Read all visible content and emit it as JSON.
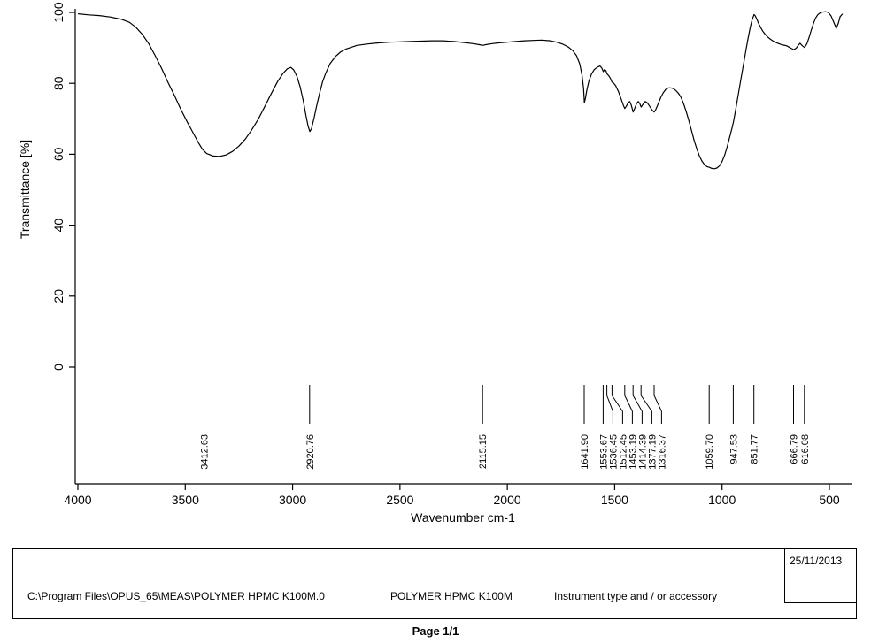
{
  "chart_data": {
    "type": "line",
    "title": "",
    "xlabel": "Wavenumber cm-1",
    "ylabel": "Transmittance [%]",
    "x_ticks": [
      4000,
      3500,
      3000,
      2500,
      2000,
      1500,
      1000,
      500
    ],
    "y_ticks": [
      0,
      20,
      40,
      60,
      80,
      100
    ],
    "xlim": [
      4000,
      450
    ],
    "ylim": [
      0,
      100
    ],
    "x_axis_reversed": true,
    "grid": false,
    "line_color": "#000000",
    "background": "#ffffff",
    "series": [
      {
        "name": "POLYMER HPMC K100M",
        "points": [
          [
            3998,
            99.6
          ],
          [
            3950,
            99.3
          ],
          [
            3900,
            99.1
          ],
          [
            3850,
            98.7
          ],
          [
            3800,
            98.1
          ],
          [
            3760,
            97.2
          ],
          [
            3730,
            95.8
          ],
          [
            3700,
            93.8
          ],
          [
            3670,
            91.2
          ],
          [
            3640,
            87.8
          ],
          [
            3610,
            84.2
          ],
          [
            3580,
            80.2
          ],
          [
            3550,
            76.5
          ],
          [
            3520,
            72.6
          ],
          [
            3490,
            69.0
          ],
          [
            3465,
            66.2
          ],
          [
            3440,
            63.4
          ],
          [
            3420,
            61.4
          ],
          [
            3400,
            60.2
          ],
          [
            3370,
            59.5
          ],
          [
            3340,
            59.4
          ],
          [
            3310,
            59.8
          ],
          [
            3280,
            60.8
          ],
          [
            3250,
            62.3
          ],
          [
            3220,
            64.3
          ],
          [
            3190,
            66.9
          ],
          [
            3160,
            69.9
          ],
          [
            3130,
            73.4
          ],
          [
            3100,
            77.0
          ],
          [
            3070,
            80.5
          ],
          [
            3045,
            82.8
          ],
          [
            3025,
            84.1
          ],
          [
            3008,
            84.5
          ],
          [
            2995,
            83.8
          ],
          [
            2980,
            82.0
          ],
          [
            2965,
            79.0
          ],
          [
            2950,
            75.0
          ],
          [
            2938,
            71.0
          ],
          [
            2928,
            68.0
          ],
          [
            2920,
            66.4
          ],
          [
            2912,
            67.2
          ],
          [
            2900,
            70.2
          ],
          [
            2888,
            73.6
          ],
          [
            2875,
            77.0
          ],
          [
            2860,
            80.5
          ],
          [
            2845,
            83.0
          ],
          [
            2825,
            85.6
          ],
          [
            2800,
            87.6
          ],
          [
            2775,
            88.9
          ],
          [
            2750,
            89.7
          ],
          [
            2700,
            90.7
          ],
          [
            2650,
            91.1
          ],
          [
            2600,
            91.4
          ],
          [
            2550,
            91.6
          ],
          [
            2500,
            91.7
          ],
          [
            2450,
            91.8
          ],
          [
            2400,
            91.9
          ],
          [
            2350,
            92.0
          ],
          [
            2300,
            92.0
          ],
          [
            2250,
            91.8
          ],
          [
            2200,
            91.5
          ],
          [
            2160,
            91.2
          ],
          [
            2130,
            90.9
          ],
          [
            2115,
            90.7
          ],
          [
            2100,
            90.9
          ],
          [
            2070,
            91.2
          ],
          [
            2040,
            91.4
          ],
          [
            2000,
            91.6
          ],
          [
            1960,
            91.8
          ],
          [
            1920,
            92.0
          ],
          [
            1880,
            92.1
          ],
          [
            1840,
            92.2
          ],
          [
            1800,
            92.0
          ],
          [
            1770,
            91.6
          ],
          [
            1740,
            91.0
          ],
          [
            1715,
            90.2
          ],
          [
            1695,
            89.2
          ],
          [
            1678,
            87.8
          ],
          [
            1663,
            85.5
          ],
          [
            1652,
            82.2
          ],
          [
            1645,
            78.5
          ],
          [
            1641,
            74.5
          ],
          [
            1636,
            75.8
          ],
          [
            1629,
            78.2
          ],
          [
            1620,
            80.6
          ],
          [
            1608,
            82.6
          ],
          [
            1595,
            83.9
          ],
          [
            1580,
            84.6
          ],
          [
            1568,
            84.9
          ],
          [
            1560,
            84.3
          ],
          [
            1553,
            83.3
          ],
          [
            1547,
            83.9
          ],
          [
            1541,
            83.6
          ],
          [
            1536,
            82.7
          ],
          [
            1528,
            82.2
          ],
          [
            1520,
            81.4
          ],
          [
            1512,
            80.3
          ],
          [
            1505,
            80.1
          ],
          [
            1495,
            79.3
          ],
          [
            1482,
            77.6
          ],
          [
            1470,
            75.6
          ],
          [
            1460,
            73.9
          ],
          [
            1453,
            72.9
          ],
          [
            1446,
            73.5
          ],
          [
            1438,
            74.5
          ],
          [
            1430,
            74.9
          ],
          [
            1423,
            73.9
          ],
          [
            1414,
            71.9
          ],
          [
            1407,
            72.9
          ],
          [
            1398,
            74.3
          ],
          [
            1390,
            74.9
          ],
          [
            1383,
            74.3
          ],
          [
            1377,
            73.3
          ],
          [
            1368,
            74.1
          ],
          [
            1358,
            74.9
          ],
          [
            1348,
            74.5
          ],
          [
            1337,
            73.5
          ],
          [
            1326,
            72.5
          ],
          [
            1316,
            71.9
          ],
          [
            1308,
            72.7
          ],
          [
            1298,
            74.1
          ],
          [
            1286,
            75.9
          ],
          [
            1274,
            77.3
          ],
          [
            1262,
            78.3
          ],
          [
            1250,
            78.7
          ],
          [
            1238,
            78.7
          ],
          [
            1226,
            78.5
          ],
          [
            1214,
            77.9
          ],
          [
            1202,
            77.1
          ],
          [
            1190,
            75.9
          ],
          [
            1178,
            74.1
          ],
          [
            1166,
            71.9
          ],
          [
            1154,
            69.3
          ],
          [
            1142,
            66.6
          ],
          [
            1130,
            63.9
          ],
          [
            1118,
            61.6
          ],
          [
            1106,
            59.6
          ],
          [
            1094,
            58.1
          ],
          [
            1082,
            57.1
          ],
          [
            1070,
            56.5
          ],
          [
            1059,
            56.3
          ],
          [
            1048,
            56.0
          ],
          [
            1036,
            55.9
          ],
          [
            1024,
            56.1
          ],
          [
            1012,
            56.7
          ],
          [
            1000,
            57.9
          ],
          [
            988,
            59.7
          ],
          [
            976,
            62.1
          ],
          [
            964,
            64.9
          ],
          [
            954,
            67.3
          ],
          [
            947,
            69.1
          ],
          [
            938,
            72.1
          ],
          [
            928,
            75.6
          ],
          [
            918,
            79.1
          ],
          [
            908,
            82.6
          ],
          [
            898,
            86.1
          ],
          [
            888,
            89.6
          ],
          [
            878,
            92.9
          ],
          [
            868,
            95.9
          ],
          [
            860,
            97.9
          ],
          [
            851,
            99.4
          ],
          [
            845,
            99.0
          ],
          [
            838,
            98.1
          ],
          [
            830,
            96.9
          ],
          [
            820,
            95.7
          ],
          [
            810,
            94.7
          ],
          [
            800,
            93.9
          ],
          [
            788,
            93.1
          ],
          [
            776,
            92.5
          ],
          [
            764,
            92.0
          ],
          [
            752,
            91.6
          ],
          [
            740,
            91.3
          ],
          [
            728,
            91.0
          ],
          [
            716,
            90.8
          ],
          [
            700,
            90.6
          ],
          [
            688,
            90.2
          ],
          [
            676,
            89.8
          ],
          [
            666,
            89.5
          ],
          [
            655,
            89.9
          ],
          [
            645,
            90.7
          ],
          [
            637,
            91.3
          ],
          [
            628,
            90.7
          ],
          [
            616,
            90.1
          ],
          [
            605,
            91.1
          ],
          [
            595,
            92.9
          ],
          [
            585,
            94.9
          ],
          [
            575,
            96.7
          ],
          [
            565,
            98.3
          ],
          [
            555,
            99.3
          ],
          [
            545,
            99.8
          ],
          [
            532,
            100.1
          ],
          [
            518,
            100.2
          ],
          [
            505,
            100.0
          ],
          [
            492,
            99.0
          ],
          [
            478,
            97.0
          ],
          [
            468,
            95.5
          ],
          [
            458,
            97.0
          ],
          [
            450,
            98.8
          ],
          [
            440,
            99.5
          ]
        ]
      }
    ],
    "peak_labels": [
      "3412.63",
      "2920.76",
      "2115.15",
      "1641.90",
      "1553.67",
      "1536.45",
      "1512.45",
      "1453.19",
      "1414.39",
      "1377.19",
      "1316.37",
      "1059.70",
      "947.53",
      "851.77",
      "666.79",
      "616.08"
    ]
  },
  "footer": {
    "file_path": "C:\\Program Files\\OPUS_65\\MEAS\\POLYMER HPMC K100M.0",
    "sample_name": "POLYMER HPMC K100M",
    "instrument_label": "Instrument type and / or accessory",
    "date": "25/11/2013",
    "page_label": "Page 1/1"
  }
}
